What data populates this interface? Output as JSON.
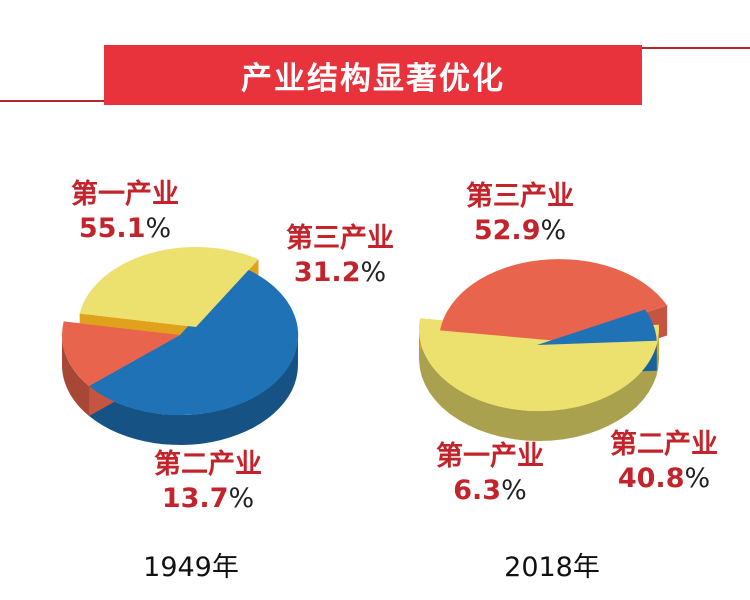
{
  "header": {
    "title": "产业结构显著优化"
  },
  "colors": {
    "banner": "#e8323c",
    "label_text": "#c3242b",
    "primary": "#1f72b6",
    "secondary": "#e8644c",
    "tertiary": "#ece06e",
    "tertiary_inner": "#e0a21c"
  },
  "chart_data": [
    {
      "type": "pie",
      "year_label": "1949年",
      "slices": [
        {
          "key": "primary",
          "label": "第一产业",
          "value_text": "55.1",
          "unit": "%",
          "value": 55.1
        },
        {
          "key": "secondary",
          "label": "第二产业",
          "value_text": "13.7",
          "unit": "%",
          "value": 13.7
        },
        {
          "key": "tertiary",
          "label": "第三产业",
          "value_text": "31.2",
          "unit": "%",
          "value": 31.2
        }
      ]
    },
    {
      "type": "pie",
      "year_label": "2018年",
      "slices": [
        {
          "key": "tertiary",
          "label": "第三产业",
          "value_text": "52.9",
          "unit": "%",
          "value": 52.9
        },
        {
          "key": "secondary",
          "label": "第二产业",
          "value_text": "40.8",
          "unit": "%",
          "value": 40.8
        },
        {
          "key": "primary",
          "label": "第一产业",
          "value_text": "6.3",
          "unit": "%",
          "value": 6.3
        }
      ]
    }
  ]
}
